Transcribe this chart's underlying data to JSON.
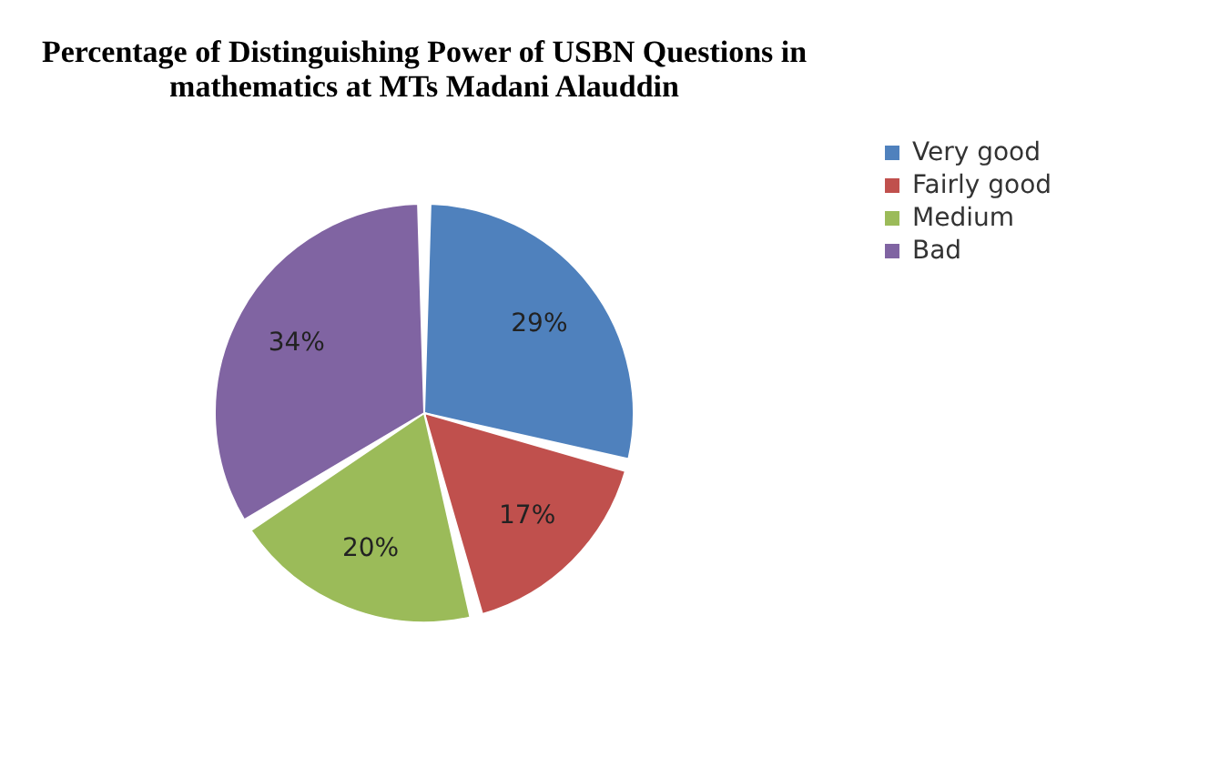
{
  "chart_data": {
    "type": "pie",
    "title": "Percentage of Distinguishing  Power of USBN Questions in mathematics at MTs Madani Alauddin",
    "categories": [
      "Very good",
      "Fairly good",
      "Medium",
      "Bad"
    ],
    "values": [
      29,
      17,
      20,
      34
    ],
    "colors": [
      "#4f81bd",
      "#c0504d",
      "#9bbb59",
      "#8064a2"
    ],
    "value_labels": [
      "29%",
      "17%",
      "20%",
      "34%"
    ],
    "legend": "right"
  }
}
